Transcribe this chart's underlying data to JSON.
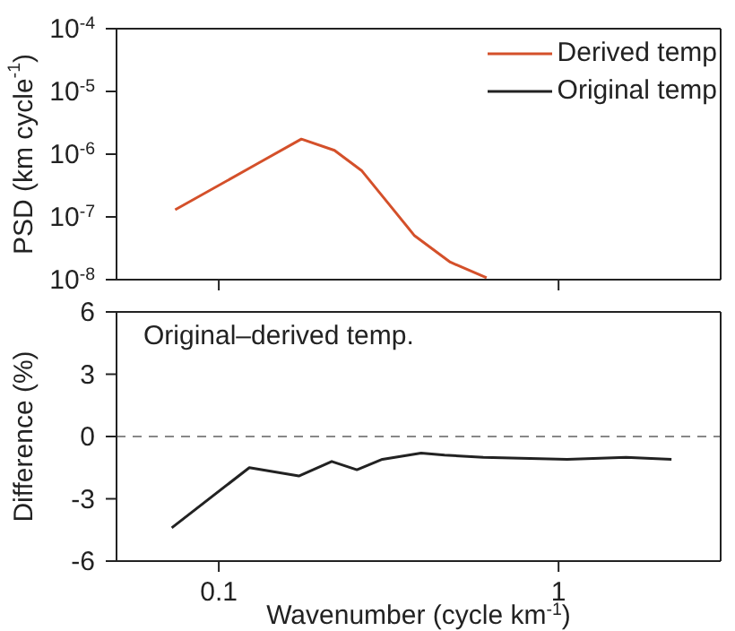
{
  "chart_data": [
    {
      "type": "line",
      "ylabel": "PSD (km cycle$^{-1}$)",
      "log": "xy",
      "xlim": [
        0.05,
        3
      ],
      "ylim": [
        1e-08,
        0.0001
      ],
      "yticks": [
        {
          "value": 1e-08,
          "label": "10$^{-8}$"
        },
        {
          "value": 1e-07,
          "label": "10$^{-7}$"
        },
        {
          "value": 1e-06,
          "label": "10$^{-6}$"
        },
        {
          "value": 1e-05,
          "label": "10$^{-5}$"
        },
        {
          "value": 0.0001,
          "label": "10$^{-4}$"
        }
      ],
      "xticks": [
        {
          "value": 0.1,
          "label": null
        },
        {
          "value": 1,
          "label": null
        }
      ],
      "tick_labels": "y",
      "legend": "top right",
      "grid": false,
      "x": [
        0.0744,
        0.129,
        0.175,
        0.219,
        0.263,
        0.315,
        0.377,
        0.48,
        0.614
      ],
      "series": [
        {
          "name": "Derived temp",
          "color": "#d4502a",
          "values": [
            1.3e-07,
            6.9e-07,
            1.74e-06,
            1.15e-06,
            5.5e-07,
            1.66e-07,
            5e-08,
            1.9e-08,
            1.07e-08
          ]
        },
        {
          "name": "Original temp",
          "color": "#222222",
          "values": [
            null,
            null,
            null,
            null,
            null,
            null,
            null,
            null,
            null
          ]
        }
      ]
    },
    {
      "type": "line",
      "ylabel": "Difference (%)",
      "xlabel": "Wavenumber (cycle km$^{-1}$)",
      "log": "x",
      "xlim": [
        0.05,
        3
      ],
      "ylim": [
        -6,
        6
      ],
      "yticks": [
        -6,
        -3,
        0,
        3,
        6
      ],
      "xticks": [
        0.1,
        1
      ],
      "grid": false,
      "annotations": [
        "Original–derived temp."
      ],
      "ref_lines": [
        {
          "axis": "y",
          "value": 0,
          "color": "#888888",
          "line_style": "dashed"
        }
      ],
      "x": [
        0.0727,
        0.123,
        0.172,
        0.215,
        0.255,
        0.303,
        0.394,
        0.462,
        0.601,
        1.06,
        1.58,
        2.15
      ],
      "series": [
        {
          "color": "#222222",
          "values": [
            -4.4,
            -1.5,
            -1.9,
            -1.2,
            -1.6,
            -1.1,
            -0.8,
            -0.9,
            -1.0,
            -1.1,
            -1.0,
            -1.1
          ]
        }
      ]
    }
  ]
}
